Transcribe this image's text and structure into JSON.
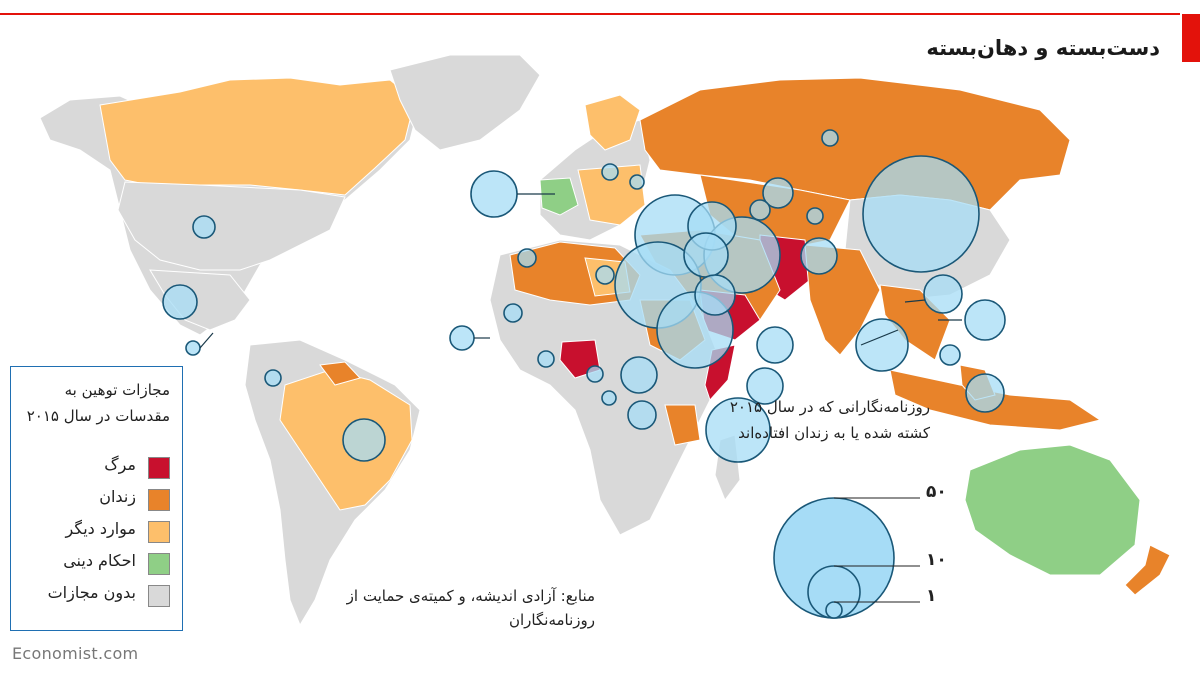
{
  "title": "دست‌بسته و دهان‌بسته",
  "legend": {
    "title": "مجازات توهین به مقدسات در سال ۲۰۱۵",
    "items": [
      {
        "label": "مرگ",
        "color": "#c8102e"
      },
      {
        "label": "زندان",
        "color": "#e8832a"
      },
      {
        "label": "موارد دیگر",
        "color": "#fdbf6b"
      },
      {
        "label": "احکام دینی",
        "color": "#8fcf86"
      },
      {
        "label": "بدون مجازات",
        "color": "#d9d9d9"
      }
    ]
  },
  "bubble_legend": {
    "note": "روزنامه‌نگارانی که در سال ۲۰۱۵ کشته شده یا به زندان افتاده‌اند",
    "sizes": [
      "۵۰",
      "۱۰",
      "۱"
    ],
    "bubble_color": "#a6dcf6"
  },
  "source": "منابع: آزادی اندیشه، و کمیته‌ی حمایت از روزنامه‌نگاران",
  "credit": "Economist.com",
  "colors": {
    "accent": "#e3120b",
    "ocean": "#ffffff",
    "no_penalty": "#d9d9d9"
  }
}
